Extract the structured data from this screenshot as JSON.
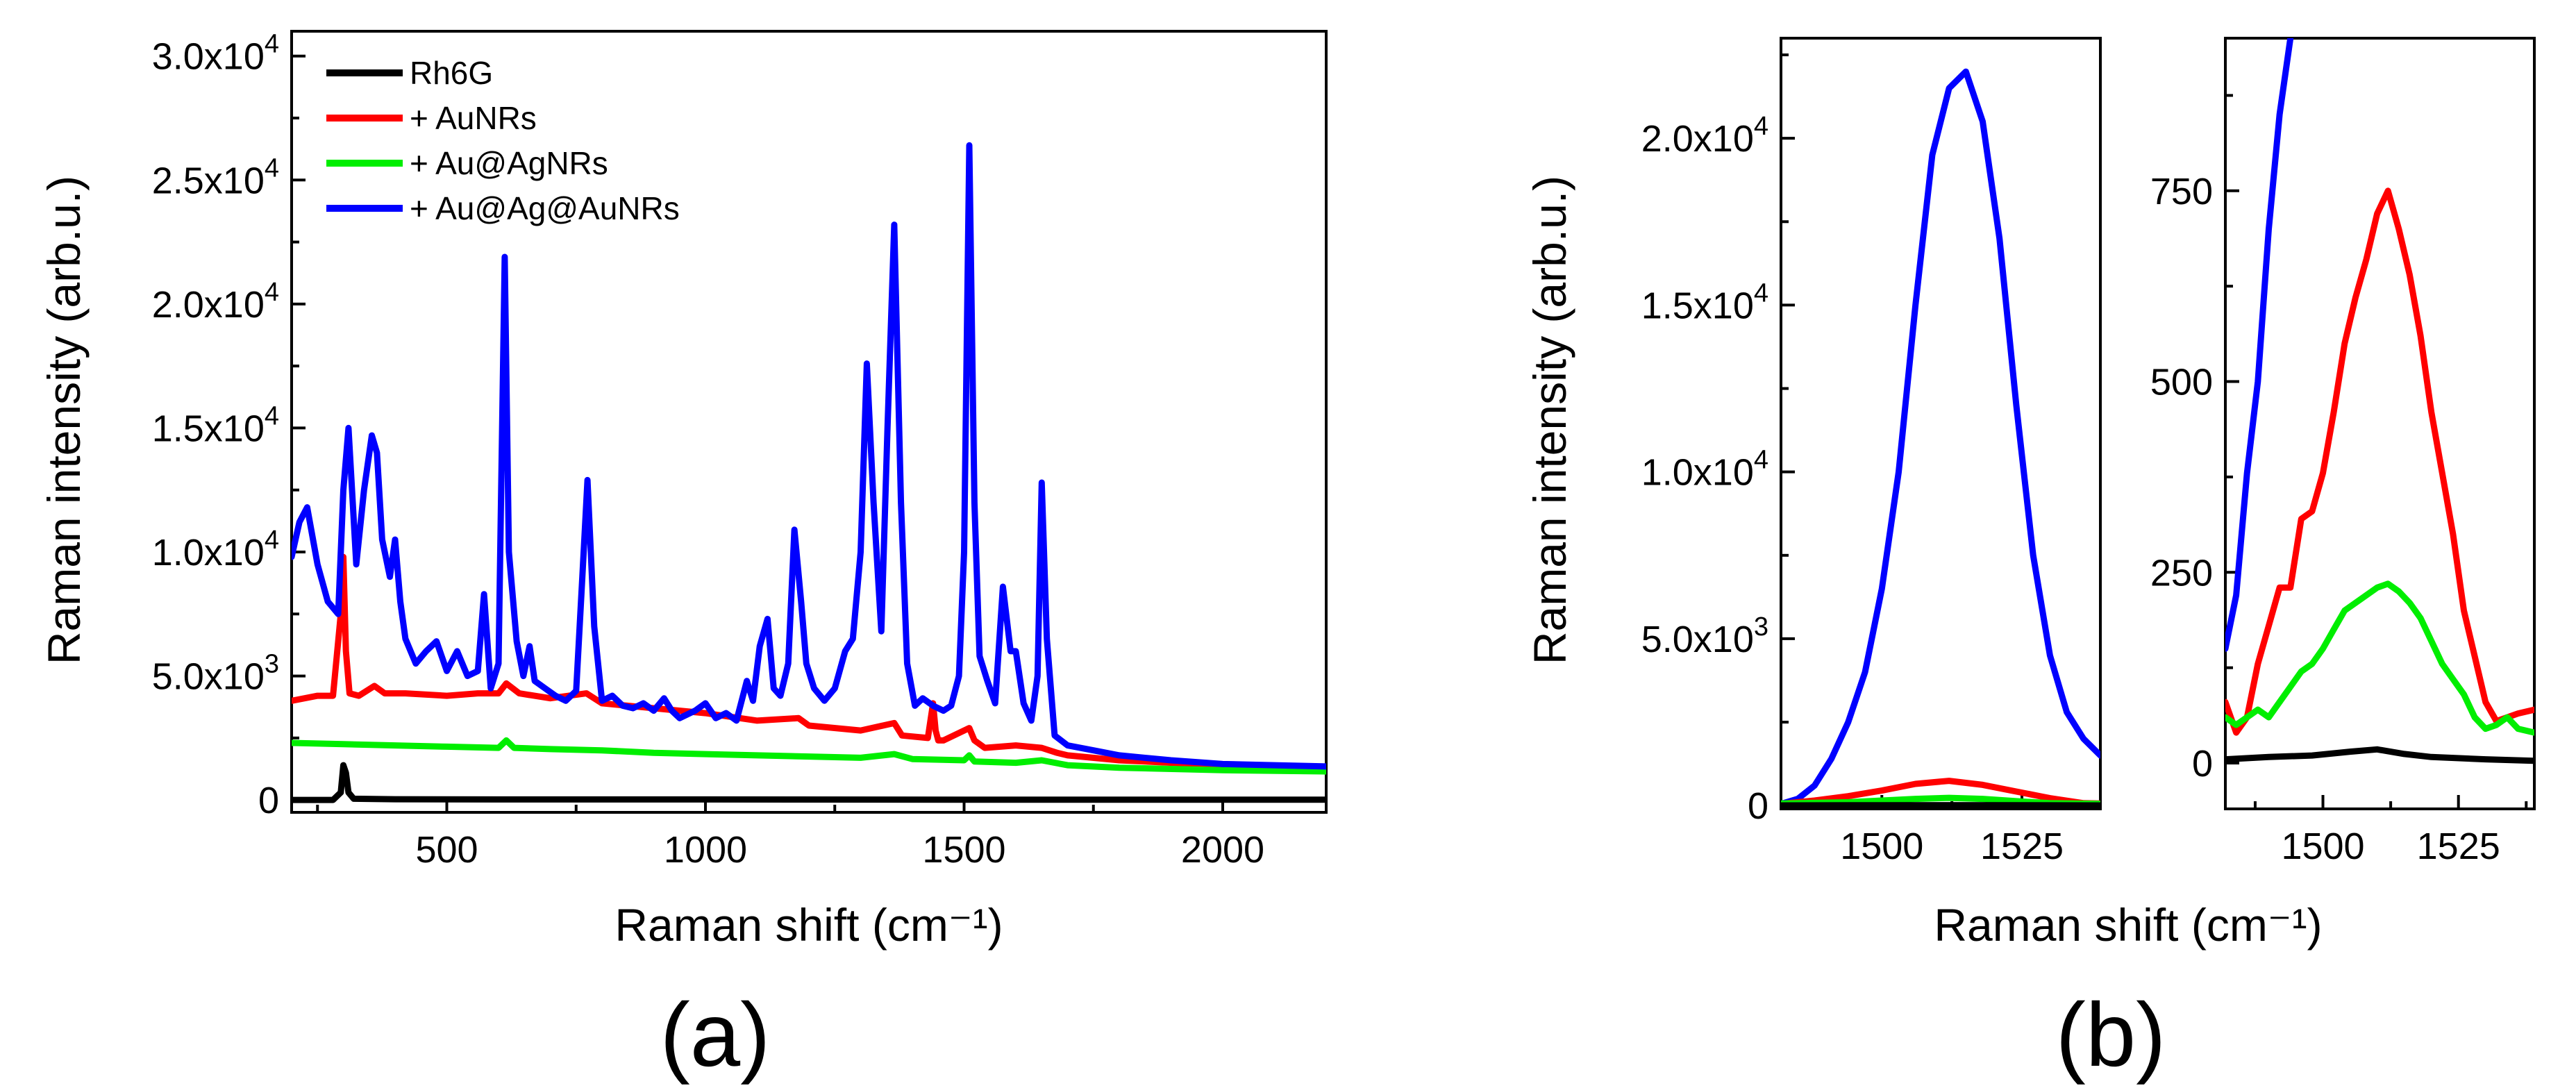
{
  "panel_labels": {
    "a": "(a)",
    "b": "(b)"
  },
  "chart_data": [
    {
      "type": "line",
      "panel": "a",
      "xlabel": "Raman shift (cm⁻¹)",
      "ylabel": "Raman intensity (arb.u.)",
      "xlim": [
        200,
        2200
      ],
      "ylim": [
        -500,
        31000
      ],
      "xticks": [
        500,
        1000,
        1500,
        2000
      ],
      "xtick_labels": [
        "500",
        "1000",
        "1500",
        "2000"
      ],
      "yticks": [
        0,
        5000,
        10000,
        15000,
        20000,
        25000,
        30000
      ],
      "ytick_labels": [
        {
          "m": "0",
          "e": ""
        },
        {
          "m": "5.0x10",
          "e": "3"
        },
        {
          "m": "1.0x10",
          "e": "4"
        },
        {
          "m": "1.5x10",
          "e": "4"
        },
        {
          "m": "2.0x10",
          "e": "4"
        },
        {
          "m": "2.5x10",
          "e": "4"
        },
        {
          "m": "3.0x10",
          "e": "4"
        }
      ],
      "legend": {
        "position": "top-left",
        "entries": [
          "Rh6G",
          "+ AuNRs",
          "+ Au@AgNRs",
          "+ Au@Ag@AuNRs"
        ]
      },
      "series": [
        {
          "name": "Rh6G",
          "color": "#000000",
          "x": [
            200,
            280,
            295,
            300,
            305,
            310,
            320,
            400,
            600,
            800,
            1000,
            1500,
            2000,
            2200
          ],
          "y": [
            0,
            0,
            300,
            1400,
            1100,
            300,
            50,
            30,
            20,
            20,
            20,
            10,
            10,
            10
          ]
        },
        {
          "name": "+ AuNRs",
          "color": "#ff0000",
          "x": [
            200,
            250,
            280,
            295,
            300,
            305,
            312,
            330,
            360,
            380,
            420,
            500,
            560,
            600,
            615,
            640,
            700,
            770,
            800,
            900,
            1000,
            1100,
            1180,
            1200,
            1300,
            1365,
            1380,
            1430,
            1440,
            1445,
            1450,
            1460,
            1510,
            1520,
            1540,
            1600,
            1650,
            1680,
            1700,
            1800,
            2000,
            2200
          ],
          "y": [
            4000,
            4200,
            4200,
            7500,
            9800,
            6000,
            4300,
            4200,
            4600,
            4300,
            4300,
            4200,
            4300,
            4300,
            4700,
            4300,
            4100,
            4300,
            3900,
            3700,
            3500,
            3200,
            3300,
            3000,
            2800,
            3100,
            2600,
            2500,
            3900,
            2800,
            2400,
            2400,
            2900,
            2400,
            2100,
            2200,
            2100,
            1900,
            1800,
            1600,
            1400,
            1300
          ]
        },
        {
          "name": "+ Au@AgNRs",
          "color": "#00ee00",
          "x": [
            200,
            300,
            400,
            500,
            600,
            615,
            630,
            700,
            800,
            900,
            1000,
            1100,
            1200,
            1300,
            1365,
            1400,
            1500,
            1510,
            1520,
            1600,
            1650,
            1700,
            1800,
            2000,
            2200
          ],
          "y": [
            2300,
            2250,
            2200,
            2150,
            2100,
            2400,
            2100,
            2050,
            2000,
            1900,
            1850,
            1800,
            1750,
            1700,
            1850,
            1650,
            1600,
            1800,
            1550,
            1500,
            1600,
            1400,
            1300,
            1200,
            1150
          ]
        },
        {
          "name": "+ Au@Ag@AuNRs",
          "color": "#0000ff",
          "x": [
            200,
            215,
            230,
            250,
            270,
            290,
            300,
            310,
            325,
            340,
            355,
            365,
            375,
            390,
            400,
            410,
            420,
            440,
            460,
            480,
            500,
            520,
            540,
            560,
            572,
            585,
            600,
            612,
            620,
            635,
            648,
            660,
            670,
            690,
            710,
            730,
            750,
            762,
            772,
            785,
            800,
            820,
            840,
            860,
            880,
            900,
            920,
            935,
            950,
            980,
            1000,
            1020,
            1040,
            1060,
            1080,
            1092,
            1105,
            1120,
            1132,
            1145,
            1160,
            1172,
            1185,
            1195,
            1210,
            1230,
            1250,
            1270,
            1285,
            1300,
            1312,
            1325,
            1340,
            1352,
            1365,
            1378,
            1390,
            1405,
            1420,
            1440,
            1460,
            1475,
            1490,
            1500,
            1510,
            1520,
            1530,
            1545,
            1560,
            1575,
            1590,
            1600,
            1615,
            1630,
            1642,
            1650,
            1660,
            1675,
            1700,
            1750,
            1800,
            1900,
            2000,
            2100,
            2200
          ],
          "y": [
            9800,
            11200,
            11800,
            9500,
            8000,
            7500,
            12500,
            15000,
            9500,
            12500,
            14700,
            14000,
            10500,
            9000,
            10500,
            8000,
            6500,
            5500,
            6000,
            6400,
            5200,
            6000,
            5000,
            5200,
            8300,
            4500,
            5500,
            21900,
            10000,
            6400,
            5000,
            6200,
            4800,
            4500,
            4200,
            4000,
            4400,
            9000,
            12900,
            7000,
            4000,
            4200,
            3800,
            3700,
            3900,
            3600,
            4100,
            3600,
            3300,
            3600,
            3900,
            3300,
            3500,
            3200,
            4800,
            4000,
            6200,
            7300,
            4500,
            4200,
            5500,
            10900,
            8000,
            5500,
            4500,
            4000,
            4500,
            6000,
            6500,
            10000,
            17600,
            12000,
            6800,
            15000,
            23200,
            12000,
            5500,
            3800,
            4100,
            3800,
            3600,
            3800,
            5000,
            10000,
            26400,
            12000,
            5800,
            4800,
            3900,
            8600,
            6000,
            6000,
            3900,
            3200,
            5000,
            12800,
            6500,
            2600,
            2200,
            2000,
            1800,
            1600,
            1450,
            1400,
            1350
          ]
        }
      ]
    },
    {
      "type": "line",
      "panel": "b-left",
      "xlabel": "Raman shift (cm⁻¹)",
      "ylabel": "Raman intensity (arb.u.)",
      "xlim": [
        1482,
        1539
      ],
      "ylim": [
        -100,
        23000
      ],
      "xticks": [
        1500,
        1525
      ],
      "xtick_labels": [
        "1500",
        "1525"
      ],
      "yticks": [
        0,
        5000,
        10000,
        15000,
        20000
      ],
      "ytick_labels": [
        {
          "m": "0",
          "e": ""
        },
        {
          "m": "5.0x10",
          "e": "3"
        },
        {
          "m": "1.0x10",
          "e": "4"
        },
        {
          "m": "1.5x10",
          "e": "4"
        },
        {
          "m": "2.0x10",
          "e": "4"
        }
      ],
      "series": [
        {
          "name": "+ Au@Ag@AuNRs",
          "color": "#0000ff",
          "x": [
            1482,
            1485,
            1488,
            1491,
            1494,
            1497,
            1500,
            1503,
            1506,
            1509,
            1512,
            1515,
            1518,
            1521,
            1524,
            1527,
            1530,
            1533,
            1536,
            1539
          ],
          "y": [
            50,
            200,
            600,
            1400,
            2500,
            4000,
            6500,
            10000,
            15000,
            19500,
            21500,
            22000,
            20500,
            17000,
            12000,
            7500,
            4500,
            2800,
            2000,
            1500
          ]
        },
        {
          "name": "+ AuNRs",
          "color": "#ff0000",
          "x": [
            1482,
            1488,
            1494,
            1500,
            1506,
            1512,
            1518,
            1524,
            1530,
            1536,
            1539
          ],
          "y": [
            50,
            150,
            280,
            450,
            650,
            740,
            620,
            420,
            220,
            70,
            60
          ]
        },
        {
          "name": "+ Au@AgNRs",
          "color": "#00ee00",
          "x": [
            1482,
            1494,
            1500,
            1506,
            1512,
            1518,
            1524,
            1530,
            1539
          ],
          "y": [
            60,
            100,
            150,
            200,
            230,
            200,
            130,
            70,
            50
          ]
        },
        {
          "name": "Rh6G",
          "color": "#000000",
          "x": [
            1482,
            1500,
            1512,
            1539
          ],
          "y": [
            5,
            10,
            12,
            5
          ]
        }
      ]
    },
    {
      "type": "line",
      "panel": "b-right",
      "xlabel": "",
      "ylabel": "",
      "xlim": [
        1482,
        1539
      ],
      "ylim": [
        -60,
        950
      ],
      "xticks": [
        1500,
        1525
      ],
      "xtick_labels": [
        "1500",
        "1525"
      ],
      "yticks": [
        0,
        250,
        500,
        750
      ],
      "ytick_labels": [
        {
          "m": "0",
          "e": ""
        },
        {
          "m": "250",
          "e": ""
        },
        {
          "m": "500",
          "e": ""
        },
        {
          "m": "750",
          "e": ""
        }
      ],
      "series": [
        {
          "name": "+ Au@Ag@AuNRs",
          "color": "#0000ff",
          "x": [
            1482,
            1484,
            1486,
            1488,
            1490,
            1492,
            1494
          ],
          "y": [
            150,
            220,
            380,
            500,
            700,
            850,
            950
          ]
        },
        {
          "name": "+ AuNRs",
          "color": "#ff0000",
          "x": [
            1482,
            1484,
            1486,
            1488,
            1490,
            1492,
            1494,
            1496,
            1498,
            1500,
            1502,
            1504,
            1506,
            1508,
            1510,
            1512,
            1514,
            1516,
            1518,
            1520,
            1522,
            1524,
            1526,
            1528,
            1530,
            1532,
            1534,
            1536,
            1539
          ],
          "y": [
            80,
            40,
            60,
            130,
            180,
            230,
            230,
            320,
            330,
            380,
            460,
            550,
            610,
            660,
            720,
            750,
            700,
            640,
            560,
            460,
            380,
            300,
            200,
            140,
            80,
            55,
            60,
            65,
            70
          ]
        },
        {
          "name": "+ Au@AgNRs",
          "color": "#00ee00",
          "x": [
            1482,
            1484,
            1486,
            1488,
            1490,
            1492,
            1494,
            1496,
            1498,
            1500,
            1502,
            1504,
            1506,
            1508,
            1510,
            1512,
            1514,
            1516,
            1518,
            1520,
            1522,
            1524,
            1526,
            1528,
            1530,
            1532,
            1534,
            1536,
            1539
          ],
          "y": [
            60,
            50,
            60,
            70,
            60,
            80,
            100,
            120,
            130,
            150,
            175,
            200,
            210,
            220,
            230,
            235,
            225,
            210,
            190,
            160,
            130,
            110,
            90,
            60,
            45,
            50,
            60,
            45,
            40
          ]
        },
        {
          "name": "Rh6G",
          "color": "#000000",
          "x": [
            1482,
            1490,
            1498,
            1505,
            1510,
            1515,
            1520,
            1530,
            1539
          ],
          "y": [
            5,
            8,
            10,
            15,
            18,
            12,
            8,
            5,
            3
          ]
        }
      ]
    }
  ]
}
